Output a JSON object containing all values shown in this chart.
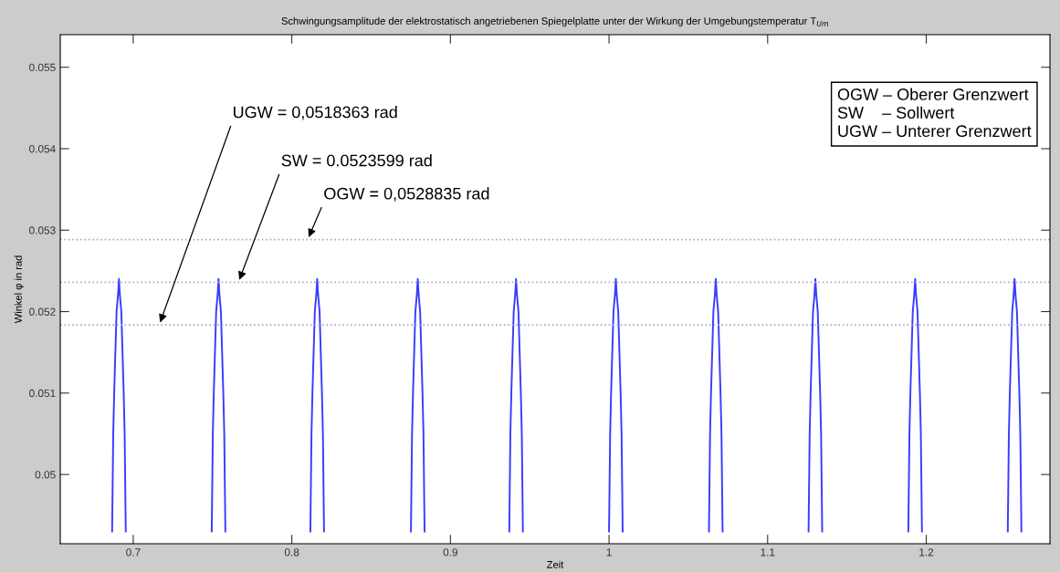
{
  "chart_data": {
    "type": "line",
    "title": "Schwingungsamplitude der elektrostatisch angetriebenen Spiegelplatte unter der Wirkung der Umgebungstemperatur T$_{Um}$",
    "xlabel": "Zeit",
    "ylabel": "Winkel φ in rad",
    "xlim": [
      0.654,
      1.278
    ],
    "ylim": [
      0.04915,
      0.0554
    ],
    "xticks": [
      0.7,
      0.8,
      0.9,
      1,
      1.1,
      1.2
    ],
    "yticks": [
      0.05,
      0.051,
      0.052,
      0.053,
      0.054,
      0.055
    ],
    "grid": false,
    "legend": false,
    "marker": "none",
    "line_style": "solid",
    "series": [
      {
        "color": "#3c3cff",
        "x": [
          0.6867,
          0.6874,
          0.688,
          0.6895,
          0.6904,
          0.691,
          0.6916,
          0.6925,
          0.694,
          0.6946,
          0.6953,
          null,
          0.7495,
          0.7502,
          0.7508,
          0.7523,
          0.7532,
          0.7538,
          0.7544,
          0.7553,
          0.7568,
          0.7574,
          0.7581,
          null,
          0.8117,
          0.8124,
          0.813,
          0.8145,
          0.8154,
          0.816,
          0.8166,
          0.8175,
          0.819,
          0.8196,
          0.8203,
          null,
          0.8751,
          0.8758,
          0.8764,
          0.8779,
          0.8788,
          0.8794,
          0.88,
          0.8809,
          0.8824,
          0.883,
          0.8837,
          null,
          0.9371,
          0.9378,
          0.9384,
          0.9399,
          0.9408,
          0.9414,
          0.942,
          0.9429,
          0.9444,
          0.945,
          0.9457,
          null,
          1.0,
          1.0007,
          1.0013,
          1.0028,
          1.0037,
          1.0043,
          1.0049,
          1.0058,
          1.0073,
          1.0079,
          1.0086,
          null,
          1.063,
          1.0637,
          1.0643,
          1.0658,
          1.0667,
          1.0673,
          1.0679,
          1.0688,
          1.0703,
          1.0709,
          1.0716,
          null,
          1.1258,
          1.1265,
          1.1271,
          1.1286,
          1.1295,
          1.1301,
          1.1307,
          1.1316,
          1.1331,
          1.1337,
          1.1344,
          null,
          1.1887,
          1.1894,
          1.19,
          1.1915,
          1.1924,
          1.193,
          1.1936,
          1.1945,
          1.196,
          1.1966,
          1.1973,
          null,
          1.2514,
          1.2521,
          1.2527,
          1.2542,
          1.2551,
          1.2557,
          1.2563,
          1.2572,
          1.2587,
          1.2593,
          1.26
        ],
        "values": [
          0.0493,
          0.0505,
          0.051,
          0.052,
          0.0522,
          0.0524,
          0.0522,
          0.052,
          0.051,
          0.0505,
          0.0493,
          null,
          0.0493,
          0.0505,
          0.051,
          0.052,
          0.0522,
          0.0524,
          0.0522,
          0.052,
          0.051,
          0.0505,
          0.0493,
          null,
          0.0493,
          0.0505,
          0.051,
          0.052,
          0.0522,
          0.0524,
          0.0522,
          0.052,
          0.051,
          0.0505,
          0.0493,
          null,
          0.0493,
          0.0505,
          0.051,
          0.052,
          0.0522,
          0.0524,
          0.0522,
          0.052,
          0.051,
          0.0505,
          0.0493,
          null,
          0.0493,
          0.0505,
          0.051,
          0.052,
          0.0522,
          0.0524,
          0.0522,
          0.052,
          0.051,
          0.0505,
          0.0493,
          null,
          0.0493,
          0.0505,
          0.051,
          0.052,
          0.0522,
          0.0524,
          0.0522,
          0.052,
          0.051,
          0.0505,
          0.0493,
          null,
          0.0493,
          0.0505,
          0.051,
          0.052,
          0.0522,
          0.0524,
          0.0522,
          0.052,
          0.051,
          0.0505,
          0.0493,
          null,
          0.0493,
          0.0505,
          0.051,
          0.052,
          0.0522,
          0.0524,
          0.0522,
          0.052,
          0.051,
          0.0505,
          0.0493,
          null,
          0.0493,
          0.0505,
          0.051,
          0.052,
          0.0522,
          0.0524,
          0.0522,
          0.052,
          0.051,
          0.0505,
          0.0493,
          null,
          0.0493,
          0.0505,
          0.051,
          0.052,
          0.0522,
          0.0524,
          0.0522,
          0.052,
          0.051,
          0.0505,
          0.0493
        ]
      }
    ],
    "ref_lines": [
      {
        "axis": "y",
        "value": 0.0518363,
        "label": "UGW = 0,0518363 rad",
        "color": "#a8a8c8",
        "line_style": "dotted"
      },
      {
        "axis": "y",
        "value": 0.0523599,
        "label": "SW = 0.0523599 rad",
        "color": "#a8a8c8",
        "line_style": "dotted"
      },
      {
        "axis": "y",
        "value": 0.0528835,
        "label": "OGW = 0,0528835 rad",
        "color": "#a8a8c8",
        "line_style": "dotted"
      }
    ],
    "annotations": [
      "OGW – Oberer Grenzwert",
      "SW    – Sollwert",
      "UGW – Unterer Grenzwert"
    ]
  }
}
